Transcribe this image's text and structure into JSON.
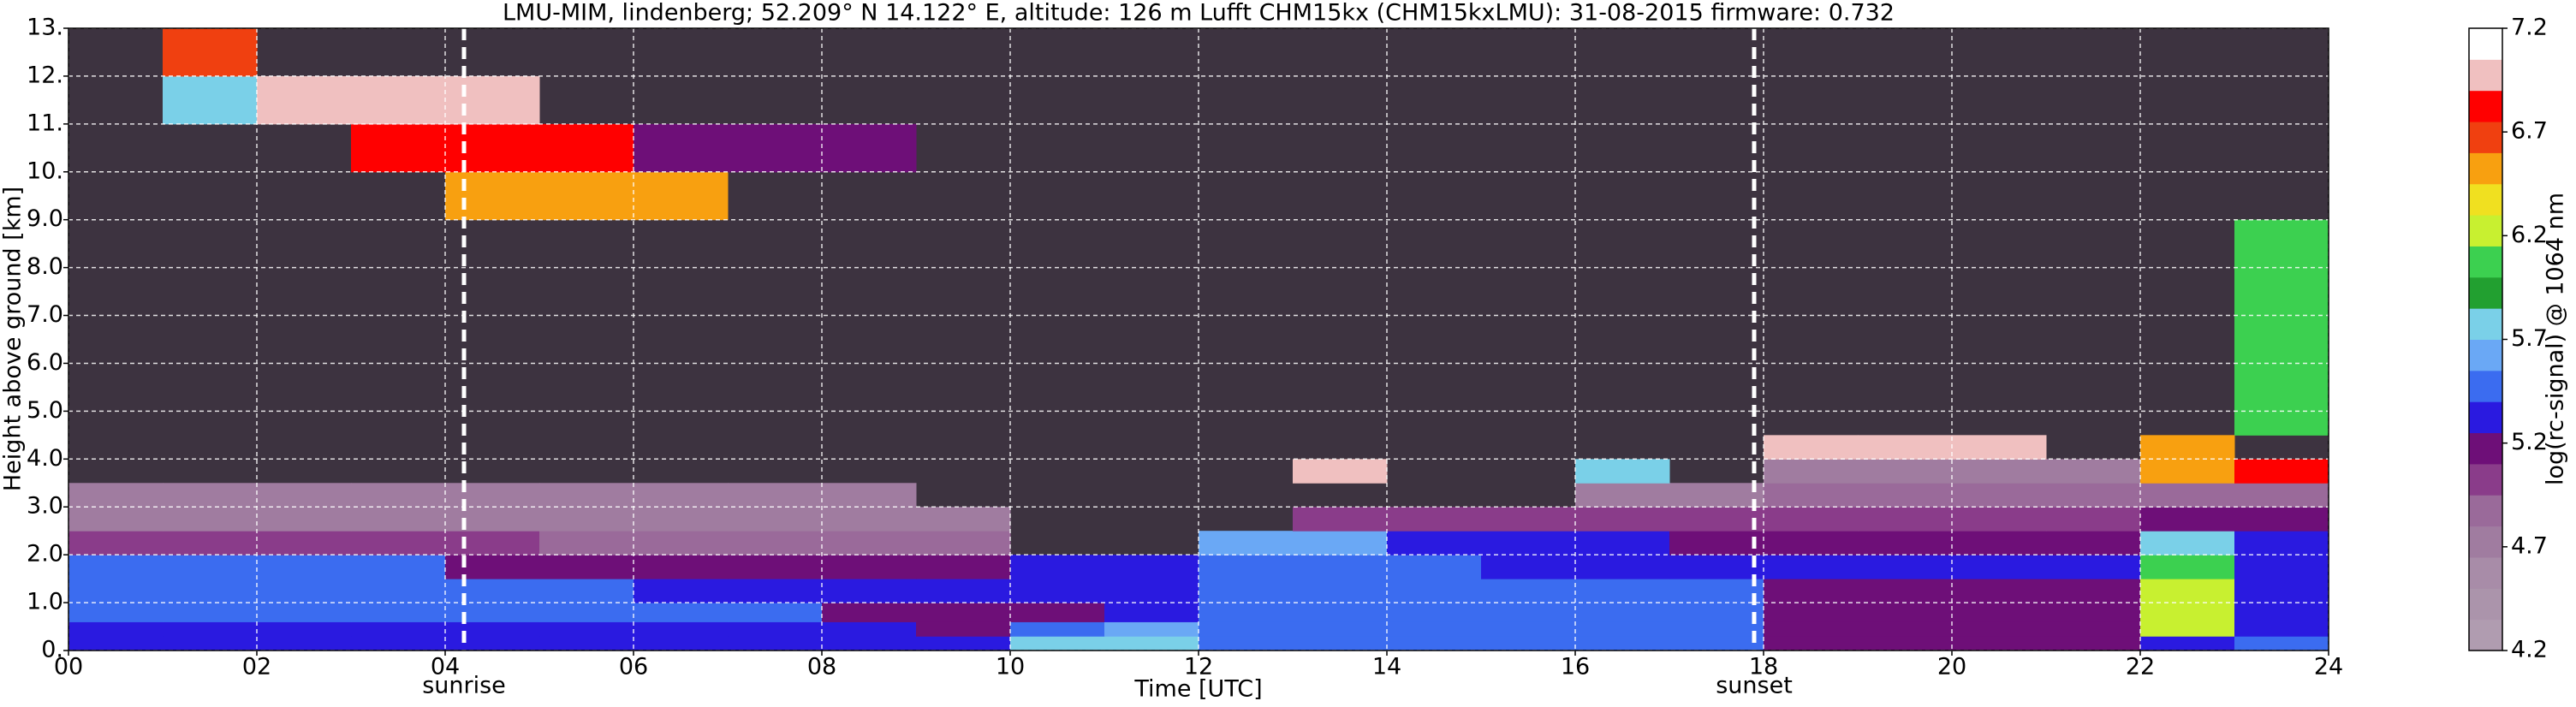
{
  "chart_data": {
    "type": "heatmap",
    "title": "LMU-MIM, lindenberg; 52.209° N 14.122° E, altitude: 126 m    Lufft CHM15kx (CHM15kxLMU): 31-08-2015    firmware: 0.732",
    "xlabel": "Time [UTC]",
    "ylabel": "Height above ground [km]",
    "colorbar_label": "log(rc-signal) @ 1064 nm",
    "xlim": [
      0,
      24
    ],
    "ylim": [
      0,
      13
    ],
    "clim": [
      4.2,
      7.2
    ],
    "xticks": [
      {
        "value": 0,
        "label": "00"
      },
      {
        "value": 2,
        "label": "02"
      },
      {
        "value": 4,
        "label": "04"
      },
      {
        "value": 6,
        "label": "06"
      },
      {
        "value": 8,
        "label": "08"
      },
      10,
      12,
      14,
      16,
      18,
      20,
      22,
      24
    ],
    "yticks": [
      {
        "value": 0,
        "label": "0."
      },
      {
        "value": 1,
        "label": "1.0"
      },
      {
        "value": 2,
        "label": "2.0"
      },
      {
        "value": 3,
        "label": "3.0"
      },
      {
        "value": 4,
        "label": "4.0"
      },
      {
        "value": 5,
        "label": "5.0"
      },
      {
        "value": 6,
        "label": "6.0"
      },
      {
        "value": 7,
        "label": "7.0"
      },
      {
        "value": 8,
        "label": "8.0"
      },
      {
        "value": 9,
        "label": "9.0"
      },
      {
        "value": 10,
        "label": "10."
      },
      {
        "value": 11,
        "label": "11."
      },
      {
        "value": 12,
        "label": "12."
      },
      {
        "value": 13,
        "label": "13."
      }
    ],
    "cticks": [
      4.2,
      4.7,
      5.2,
      5.7,
      6.2,
      6.7,
      7.2
    ],
    "grid": true,
    "colorscale": [
      "#b09cb0",
      "#ab94ab",
      "#a88ca8",
      "#a07ca0",
      "#9a6a9a",
      "#8a3c8a",
      "#6e0f78",
      "#2a1ae0",
      "#3b6cf0",
      "#6aa8f5",
      "#7ad0e8",
      "#22a030",
      "#3cd050",
      "#c8f030",
      "#f0e020",
      "#f8a010",
      "#f04010",
      "#ff0000",
      "#f0c0c0",
      "#ffffff"
    ],
    "annotations": [
      {
        "text": "sunrise",
        "x": 4.2
      },
      {
        "text": "sunset",
        "x": 17.9
      }
    ],
    "x_edges": [
      0,
      1,
      2,
      3,
      4,
      5,
      6,
      7,
      8,
      9,
      10,
      11,
      12,
      13,
      14,
      15,
      16,
      17,
      18,
      19,
      20,
      21,
      22,
      23,
      24
    ],
    "y_edges": [
      0,
      0.3,
      0.6,
      1,
      1.5,
      2,
      2.5,
      3,
      3.5,
      4,
      4.5,
      9,
      10,
      11,
      12,
      13
    ],
    "values": [
      [
        5.35,
        5.35,
        5.35,
        5.35,
        5.35,
        5.35,
        5.35,
        5.35,
        5.35,
        5.35,
        5.7,
        5.7,
        5.5,
        5.5,
        5.5,
        5.5,
        5.5,
        5.5,
        5.15,
        5.15,
        5.15,
        5.15,
        5.3,
        5.5
      ],
      [
        5.3,
        5.3,
        5.3,
        5.3,
        5.3,
        5.3,
        5.3,
        5.3,
        5.3,
        5.2,
        5.4,
        5.6,
        5.5,
        5.5,
        5.5,
        5.5,
        5.5,
        5.5,
        5.15,
        5.15,
        5.15,
        5.15,
        6.3,
        5.3
      ],
      [
        5.4,
        5.4,
        5.4,
        5.4,
        5.4,
        5.4,
        5.4,
        5.4,
        5.2,
        5.2,
        5.2,
        5.35,
        5.45,
        5.45,
        5.45,
        5.45,
        5.45,
        5.45,
        5.2,
        5.2,
        5.2,
        5.2,
        6.3,
        5.3
      ],
      [
        5.45,
        5.45,
        5.45,
        5.45,
        5.45,
        5.45,
        5.3,
        5.3,
        5.3,
        5.3,
        5.3,
        5.3,
        5.4,
        5.4,
        5.4,
        5.4,
        5.4,
        5.4,
        5.25,
        5.25,
        5.25,
        5.25,
        6.2,
        5.3
      ],
      [
        5.5,
        5.5,
        5.5,
        5.5,
        5.2,
        5.2,
        5.2,
        5.2,
        5.2,
        5.2,
        5.35,
        5.35,
        5.5,
        5.5,
        5.5,
        5.35,
        5.35,
        5.35,
        5.3,
        5.3,
        5.3,
        5.3,
        6.0,
        5.35
      ],
      [
        5.05,
        5.05,
        5.05,
        5.05,
        5.05,
        4.9,
        4.9,
        4.9,
        4.9,
        4.9,
        null,
        null,
        5.6,
        5.6,
        5.3,
        5.3,
        5.3,
        5.25,
        5.25,
        5.25,
        5.25,
        5.25,
        5.8,
        5.3
      ],
      [
        4.8,
        4.8,
        4.8,
        4.8,
        4.8,
        4.8,
        4.8,
        4.8,
        4.8,
        4.8,
        null,
        null,
        null,
        5.0,
        5.0,
        5.0,
        5.0,
        5.0,
        5.1,
        5.1,
        5.1,
        5.1,
        5.2,
        5.2
      ],
      [
        4.7,
        4.7,
        4.7,
        4.7,
        4.7,
        4.7,
        4.7,
        4.7,
        4.7,
        null,
        null,
        null,
        null,
        null,
        null,
        null,
        4.8,
        4.8,
        4.9,
        4.9,
        4.9,
        4.9,
        4.9,
        4.9
      ],
      [
        null,
        null,
        null,
        null,
        null,
        null,
        null,
        null,
        null,
        null,
        null,
        null,
        null,
        7.0,
        null,
        null,
        5.7,
        null,
        4.8,
        4.8,
        4.8,
        4.8,
        6.5,
        6.8
      ],
      [
        null,
        null,
        null,
        null,
        null,
        null,
        null,
        null,
        null,
        null,
        null,
        null,
        null,
        null,
        null,
        null,
        null,
        null,
        7.0,
        7.0,
        7.0,
        null,
        6.6,
        null
      ],
      [
        null,
        null,
        null,
        null,
        null,
        null,
        null,
        null,
        null,
        null,
        null,
        null,
        null,
        null,
        null,
        null,
        null,
        null,
        null,
        null,
        null,
        null,
        null,
        6.0
      ],
      [
        null,
        null,
        null,
        null,
        6.5,
        6.5,
        6.5,
        null,
        null,
        null,
        null,
        null,
        null,
        null,
        null,
        null,
        null,
        null,
        null,
        null,
        null,
        null,
        null,
        null
      ],
      [
        null,
        null,
        null,
        6.8,
        6.8,
        6.8,
        5.2,
        5.2,
        5.2,
        null,
        null,
        null,
        null,
        null,
        null,
        null,
        null,
        null,
        null,
        null,
        null,
        null,
        null,
        null
      ],
      [
        null,
        5.8,
        6.9,
        6.9,
        6.9,
        null,
        null,
        null,
        null,
        null,
        null,
        null,
        null,
        null,
        null,
        null,
        null,
        null,
        null,
        null,
        null,
        null,
        null,
        null
      ],
      [
        null,
        6.7,
        null,
        null,
        null,
        null,
        null,
        null,
        null,
        null,
        null,
        null,
        null,
        null,
        null,
        null,
        null,
        null,
        null,
        null,
        null,
        null,
        null,
        null
      ]
    ]
  }
}
